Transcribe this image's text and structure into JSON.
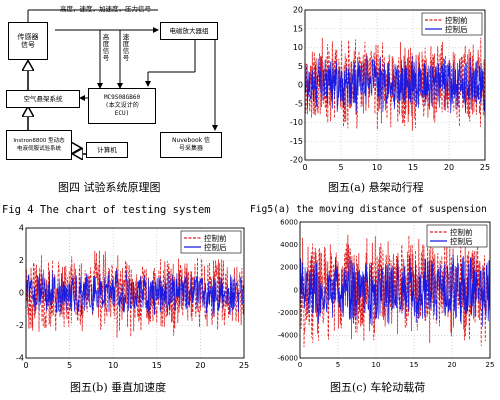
{
  "diagram": {
    "sensor": "传感器\n信号",
    "signals": "高度，速度，加速度，压力信号",
    "amp": "电磁放大器组",
    "height_signal": "高度信号",
    "speed_signal": "速度信号",
    "airsusp": "空气悬架系统",
    "ecu": "MC9S08GB60\n(本文设计的\nECU)",
    "test_bench": "Instron8800 型动态\n电液伺服试验系统",
    "computer": "计算机",
    "daq": "Nuvebook 信\n号采集器"
  },
  "figure_captions": {
    "fig4_cn": "图四 试验系统原理图",
    "fig4_en": "Fig 4 The chart of testing system",
    "fig5a_cn": "图五(a) 悬架动行程",
    "fig5a_en": "Fig5(a) the moving distance of suspension",
    "fig5b_cn": "图五(b) 垂直加速度",
    "fig5c_cn": "图五(c) 车轮动载荷"
  },
  "legend": {
    "before": "控制前",
    "after": "控制后"
  },
  "colors": {
    "before": "#e02020",
    "after": "#1a1ae0"
  },
  "chart_data": [
    {
      "id": "fig5a",
      "type": "line",
      "title": "",
      "xlabel": "",
      "ylabel": "",
      "xlim": [
        0,
        25
      ],
      "ylim": [
        -20,
        20
      ],
      "xticks": [
        0,
        5,
        10,
        15,
        20,
        25
      ],
      "yticks": [
        -20,
        -15,
        -10,
        -5,
        0,
        5,
        10,
        15,
        20
      ],
      "grid": true,
      "legend": "top-right",
      "series": [
        {
          "name": "控制前",
          "style": "dashed",
          "amplitude": 13
        },
        {
          "name": "控制后",
          "style": "solid",
          "amplitude": 8
        }
      ]
    },
    {
      "id": "fig5b",
      "type": "line",
      "title": "",
      "xlabel": "",
      "ylabel": "",
      "xlim": [
        0,
        25
      ],
      "ylim": [
        -4,
        4
      ],
      "xticks": [
        0,
        5,
        10,
        15,
        20,
        25
      ],
      "yticks": [
        -4,
        -2,
        0,
        2,
        4
      ],
      "grid": true,
      "legend": "top-right",
      "series": [
        {
          "name": "控制前",
          "style": "dashed",
          "amplitude": 2.8
        },
        {
          "name": "控制后",
          "style": "solid",
          "amplitude": 1.5
        }
      ]
    },
    {
      "id": "fig5c",
      "type": "line",
      "title": "",
      "xlabel": "",
      "ylabel": "",
      "xlim": [
        0,
        25
      ],
      "ylim": [
        -6000,
        6000
      ],
      "xticks": [
        0,
        5,
        10,
        15,
        20,
        25
      ],
      "yticks": [
        -6000,
        -4000,
        -2000,
        0,
        2000,
        4000,
        6000
      ],
      "grid": true,
      "legend": "top-right",
      "series": [
        {
          "name": "控制前",
          "style": "dashed",
          "amplitude": 5200
        },
        {
          "name": "控制后",
          "style": "solid",
          "amplitude": 3300
        }
      ]
    }
  ]
}
